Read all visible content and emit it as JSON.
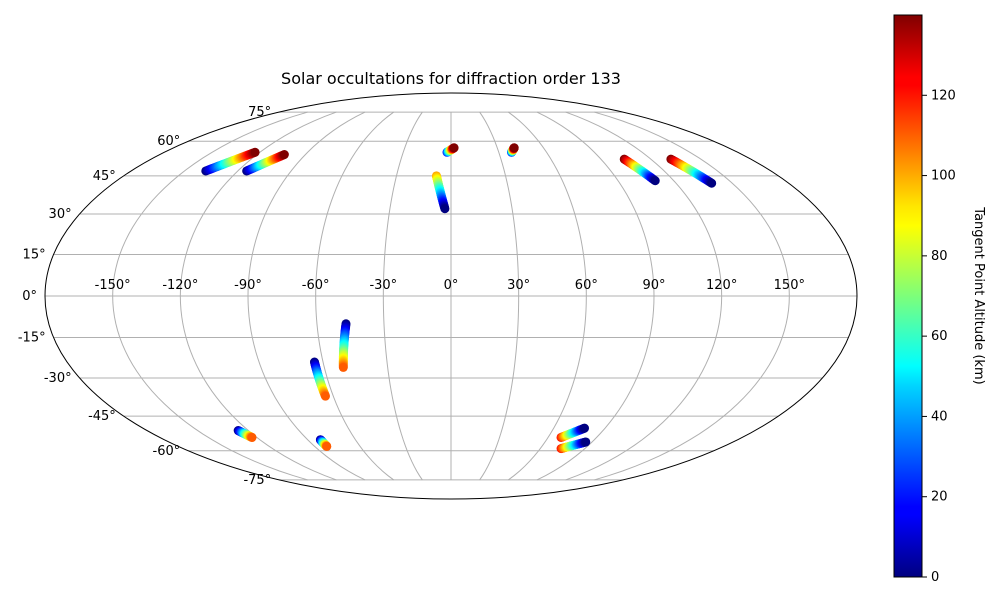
{
  "chart_data": {
    "type": "scatter",
    "projection": "mollweide",
    "title": "Solar occultations for diffraction order 133",
    "lon_ticks": [
      -150,
      -120,
      -90,
      -60,
      -30,
      0,
      30,
      60,
      90,
      120,
      150
    ],
    "lon_tick_labels": [
      "-150°",
      "-120°",
      "-90°",
      "-60°",
      "-30°",
      "0°",
      "30°",
      "60°",
      "90°",
      "120°",
      "150°"
    ],
    "lat_ticks": [
      -75,
      -60,
      -45,
      -30,
      -15,
      0,
      15,
      30,
      45,
      60,
      75
    ],
    "lat_tick_labels": [
      "-75°",
      "-60°",
      "-45°",
      "-30°",
      "-15°",
      "0°",
      "15°",
      "30°",
      "45°",
      "60°",
      "75°"
    ],
    "grid": true,
    "colorbar": {
      "label": "Tangent Point Altitude (km)",
      "colormap": "jet",
      "range": [
        0,
        140
      ],
      "ticks": [
        0,
        20,
        40,
        60,
        80,
        100,
        120
      ],
      "tick_labels": [
        "0",
        "20",
        "40",
        "60",
        "80",
        "100",
        "120"
      ]
    },
    "tracks": [
      {
        "start": [
          -138,
          47
        ],
        "end": [
          -123,
          55
        ],
        "alt_start": 0,
        "alt_end": 140
      },
      {
        "start": [
          -115,
          47
        ],
        "end": [
          -103,
          54
        ],
        "alt_start": 0,
        "alt_end": 140
      },
      {
        "start": [
          -2.5,
          55
        ],
        "end": [
          2,
          57
        ],
        "alt_start": 20,
        "alt_end": 140
      },
      {
        "start": [
          -8,
          45
        ],
        "end": [
          -3,
          32
        ],
        "alt_start": 100,
        "alt_end": 0
      },
      {
        "start": [
          38,
          55
        ],
        "end": [
          41,
          57
        ],
        "alt_start": 20,
        "alt_end": 140
      },
      {
        "start": [
          104,
          52
        ],
        "end": [
          110,
          43
        ],
        "alt_start": 140,
        "alt_end": 0
      },
      {
        "start": [
          132,
          52
        ],
        "end": [
          139,
          42
        ],
        "alt_start": 140,
        "alt_end": 0
      },
      {
        "start": [
          -47,
          -10
        ],
        "end": [
          -51,
          -26
        ],
        "alt_start": 0,
        "alt_end": 110
      },
      {
        "start": [
          -64,
          -24
        ],
        "end": [
          -64,
          -37
        ],
        "alt_start": 0,
        "alt_end": 110
      },
      {
        "start": [
          -126,
          -51
        ],
        "end": [
          -123,
          -54
        ],
        "alt_start": 0,
        "alt_end": 110
      },
      {
        "start": [
          -82,
          -55
        ],
        "end": [
          -82,
          -58
        ],
        "alt_start": 0,
        "alt_end": 110
      },
      {
        "start": [
          68,
          -54
        ],
        "end": [
          78,
          -50
        ],
        "alt_start": 120,
        "alt_end": 0
      },
      {
        "start": [
          74,
          -59
        ],
        "end": [
          86,
          -56
        ],
        "alt_start": 120,
        "alt_end": 0
      }
    ]
  }
}
